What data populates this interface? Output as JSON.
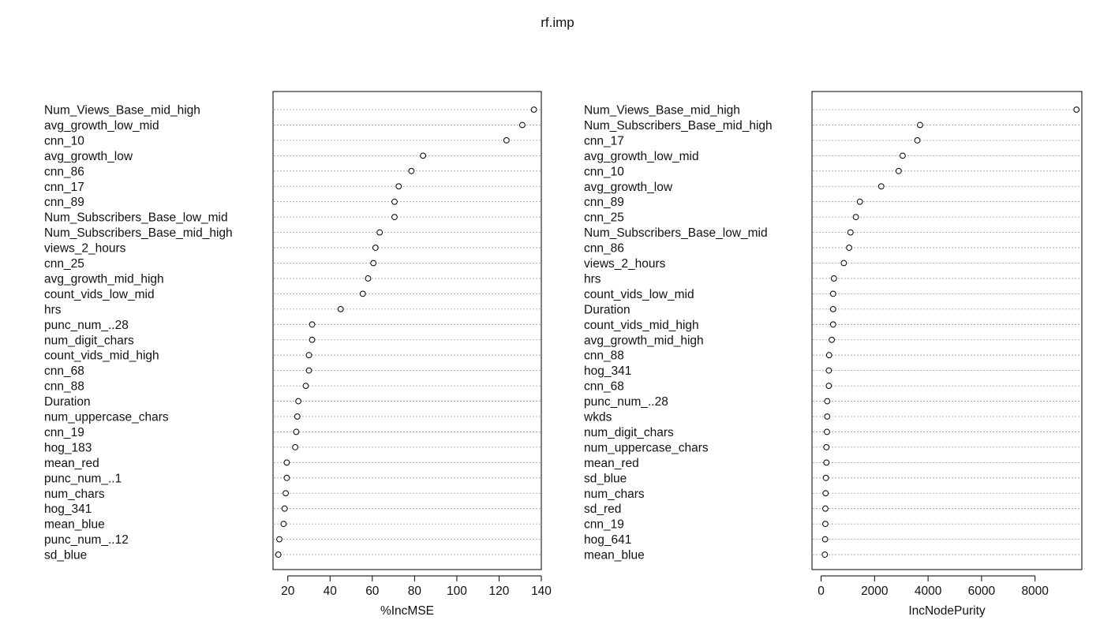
{
  "title": "rf.imp",
  "chart_data": [
    {
      "type": "scatter",
      "subtype": "dotchart",
      "xlabel": "%IncMSE",
      "xlim": [
        13,
        140
      ],
      "xticks": [
        20,
        40,
        60,
        80,
        100,
        120,
        140
      ],
      "grid": "dotted horizontal",
      "labels": [
        "Num_Views_Base_mid_high",
        "avg_growth_low_mid",
        "cnn_10",
        "avg_growth_low",
        "cnn_86",
        "cnn_17",
        "cnn_89",
        "Num_Subscribers_Base_low_mid",
        "Num_Subscribers_Base_mid_high",
        "views_2_hours",
        "cnn_25",
        "avg_growth_mid_high",
        "count_vids_low_mid",
        "hrs",
        "punc_num_..28",
        "num_digit_chars",
        "count_vids_mid_high",
        "cnn_68",
        "cnn_88",
        "Duration",
        "num_uppercase_chars",
        "cnn_19",
        "hog_183",
        "mean_red",
        "punc_num_..1",
        "num_chars",
        "hog_341",
        "mean_blue",
        "punc_num_..12",
        "sd_blue"
      ],
      "values": [
        136.5,
        131,
        123.5,
        84,
        78.5,
        72.5,
        70.5,
        70.5,
        63.5,
        61.5,
        60.5,
        58,
        55.5,
        45,
        31.5,
        31.5,
        30,
        30,
        28.5,
        25,
        24.5,
        24,
        23.5,
        19.5,
        19.5,
        19,
        18.5,
        18,
        16,
        15.5
      ]
    },
    {
      "type": "scatter",
      "subtype": "dotchart",
      "xlabel": "IncNodePurity",
      "xlim": [
        -340,
        9750
      ],
      "xticks": [
        0,
        2000,
        4000,
        6000,
        8000
      ],
      "grid": "dotted horizontal",
      "labels": [
        "Num_Views_Base_mid_high",
        "Num_Subscribers_Base_mid_high",
        "cnn_17",
        "avg_growth_low_mid",
        "cnn_10",
        "avg_growth_low",
        "cnn_89",
        "cnn_25",
        "Num_Subscribers_Base_low_mid",
        "cnn_86",
        "views_2_hours",
        "hrs",
        "count_vids_low_mid",
        "Duration",
        "count_vids_mid_high",
        "avg_growth_mid_high",
        "cnn_88",
        "hog_341",
        "cnn_68",
        "punc_num_..28",
        "wkds",
        "num_digit_chars",
        "num_uppercase_chars",
        "mean_red",
        "sd_blue",
        "num_chars",
        "sd_red",
        "cnn_19",
        "hog_641",
        "mean_blue"
      ],
      "values": [
        9550,
        3700,
        3600,
        3050,
        2900,
        2250,
        1450,
        1300,
        1100,
        1050,
        850,
        480,
        450,
        450,
        450,
        400,
        300,
        290,
        290,
        230,
        230,
        220,
        200,
        200,
        180,
        170,
        160,
        160,
        150,
        140
      ]
    }
  ]
}
